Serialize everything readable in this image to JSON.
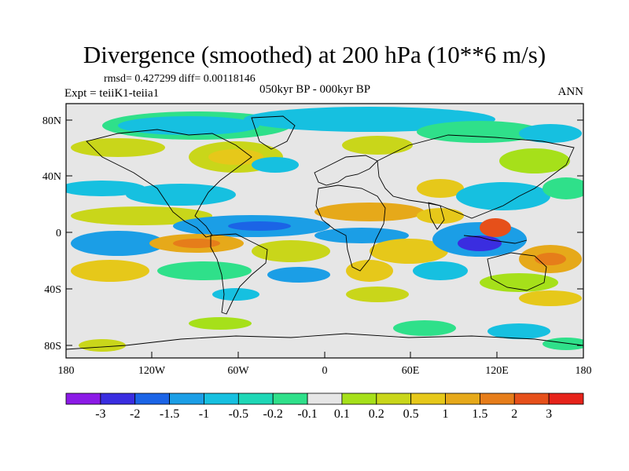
{
  "title": "Divergence (smoothed) at 200 hPa (10**6 m/s)",
  "stats": "rmsd= 0.427299 diff= 0.00118146",
  "experiment": "Expt = teiiK1-teiia1",
  "period": "050kyr BP - 000kyr BP",
  "season": "ANN",
  "y_ticks": [
    "80N",
    "40N",
    "0",
    "40S",
    "80S"
  ],
  "x_ticks": [
    "180",
    "120W",
    "60W",
    "0",
    "60E",
    "120E",
    "180"
  ],
  "colorbar": {
    "colors": [
      "#8b1ae6",
      "#3a2de0",
      "#1b64e6",
      "#1b9ee6",
      "#16c0e0",
      "#1ed7b6",
      "#2fe08a",
      "#e6e6e6",
      "#a6e01a",
      "#c9d61a",
      "#e6c81a",
      "#e6a91a",
      "#e67d1a",
      "#e6501a",
      "#e6231a"
    ],
    "labels": [
      "-3",
      "-2",
      "-1.5",
      "-1",
      "-0.5",
      "-0.2",
      "-0.1",
      "0.1",
      "0.2",
      "0.5",
      "1",
      "1.5",
      "2",
      "3"
    ]
  }
}
